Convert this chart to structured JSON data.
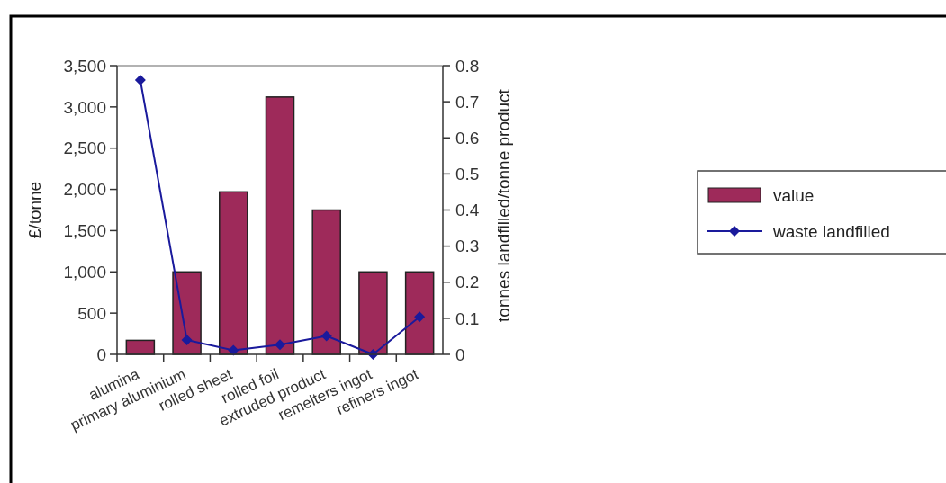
{
  "chart_data": {
    "type": "bar",
    "xlabel": null,
    "ylabel": "£/tonne",
    "y2label": "tonnes landfilled/tonne product",
    "categories": [
      "alumina",
      "primary aluminium",
      "rolled sheet",
      "rolled foil",
      "extruded product",
      "remelters ingot",
      "refiners ingot"
    ],
    "series": [
      {
        "name": "value",
        "color": "#9e2a5a",
        "values": [
          170,
          1000,
          1970,
          3120,
          1750,
          1000,
          1000
        ]
      },
      {
        "name": "waste landfilled",
        "type": "line",
        "axis": "y2",
        "color": "#1a1a9c",
        "marker": "diamond",
        "values": [
          0.76,
          0.04,
          0.011,
          0.027,
          0.051,
          0,
          0.104
        ]
      }
    ],
    "ylim": [
      0,
      3500
    ],
    "yticks": [
      {
        "value": 0,
        "label": "0"
      },
      {
        "value": 500,
        "label": "500"
      },
      {
        "value": 1000,
        "label": "1,000"
      },
      {
        "value": 1500,
        "label": "1,500"
      },
      {
        "value": 2000,
        "label": "2,000"
      },
      {
        "value": 2500,
        "label": "2,500"
      },
      {
        "value": 3000,
        "label": "3,000"
      },
      {
        "value": 3500,
        "label": "3,500"
      }
    ],
    "y2lim": [
      0,
      0.8
    ],
    "y2ticks": [
      0,
      0.1,
      0.2,
      0.3,
      0.4,
      0.5,
      0.6,
      0.7,
      0.8
    ],
    "legend": "right",
    "grid": false
  }
}
